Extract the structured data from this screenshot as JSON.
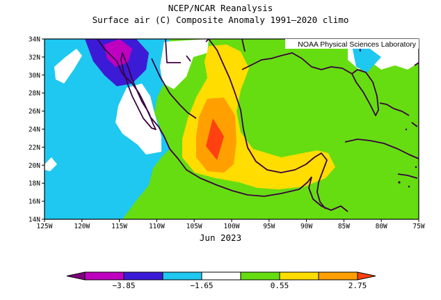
{
  "title": "NCEP/NCAR Reanalysis",
  "subtitle": "Surface air (C) Composite Anomaly 1991–2020 climo",
  "credit": "NOAA Physical Sciences Laboratory",
  "month_label": "Jun 2023",
  "lat_labels": [
    "34N",
    "32N",
    "30N",
    "28N",
    "26N",
    "24N",
    "22N",
    "20N",
    "18N",
    "16N",
    "14N"
  ],
  "lat_values": [
    34,
    32,
    30,
    28,
    26,
    24,
    22,
    20,
    18,
    16,
    14
  ],
  "lon_labels": [
    "125W",
    "120W",
    "115W",
    "110W",
    "105W",
    "100W",
    "95W",
    "90W",
    "85W",
    "80W",
    "75W"
  ],
  "lon_values": [
    -125,
    -120,
    -115,
    -110,
    -105,
    -100,
    -95,
    -90,
    -85,
    -80,
    -75
  ],
  "colorbar": {
    "labels": [
      "−3.85",
      "−1.65",
      "0.55",
      "2.75"
    ],
    "colors": [
      "#800080",
      "#c000c0",
      "#3c1bd6",
      "#1ec8f0",
      "#ffffff",
      "#66dd11",
      "#ffdd00",
      "#ffa000",
      "#ff4010"
    ]
  }
}
